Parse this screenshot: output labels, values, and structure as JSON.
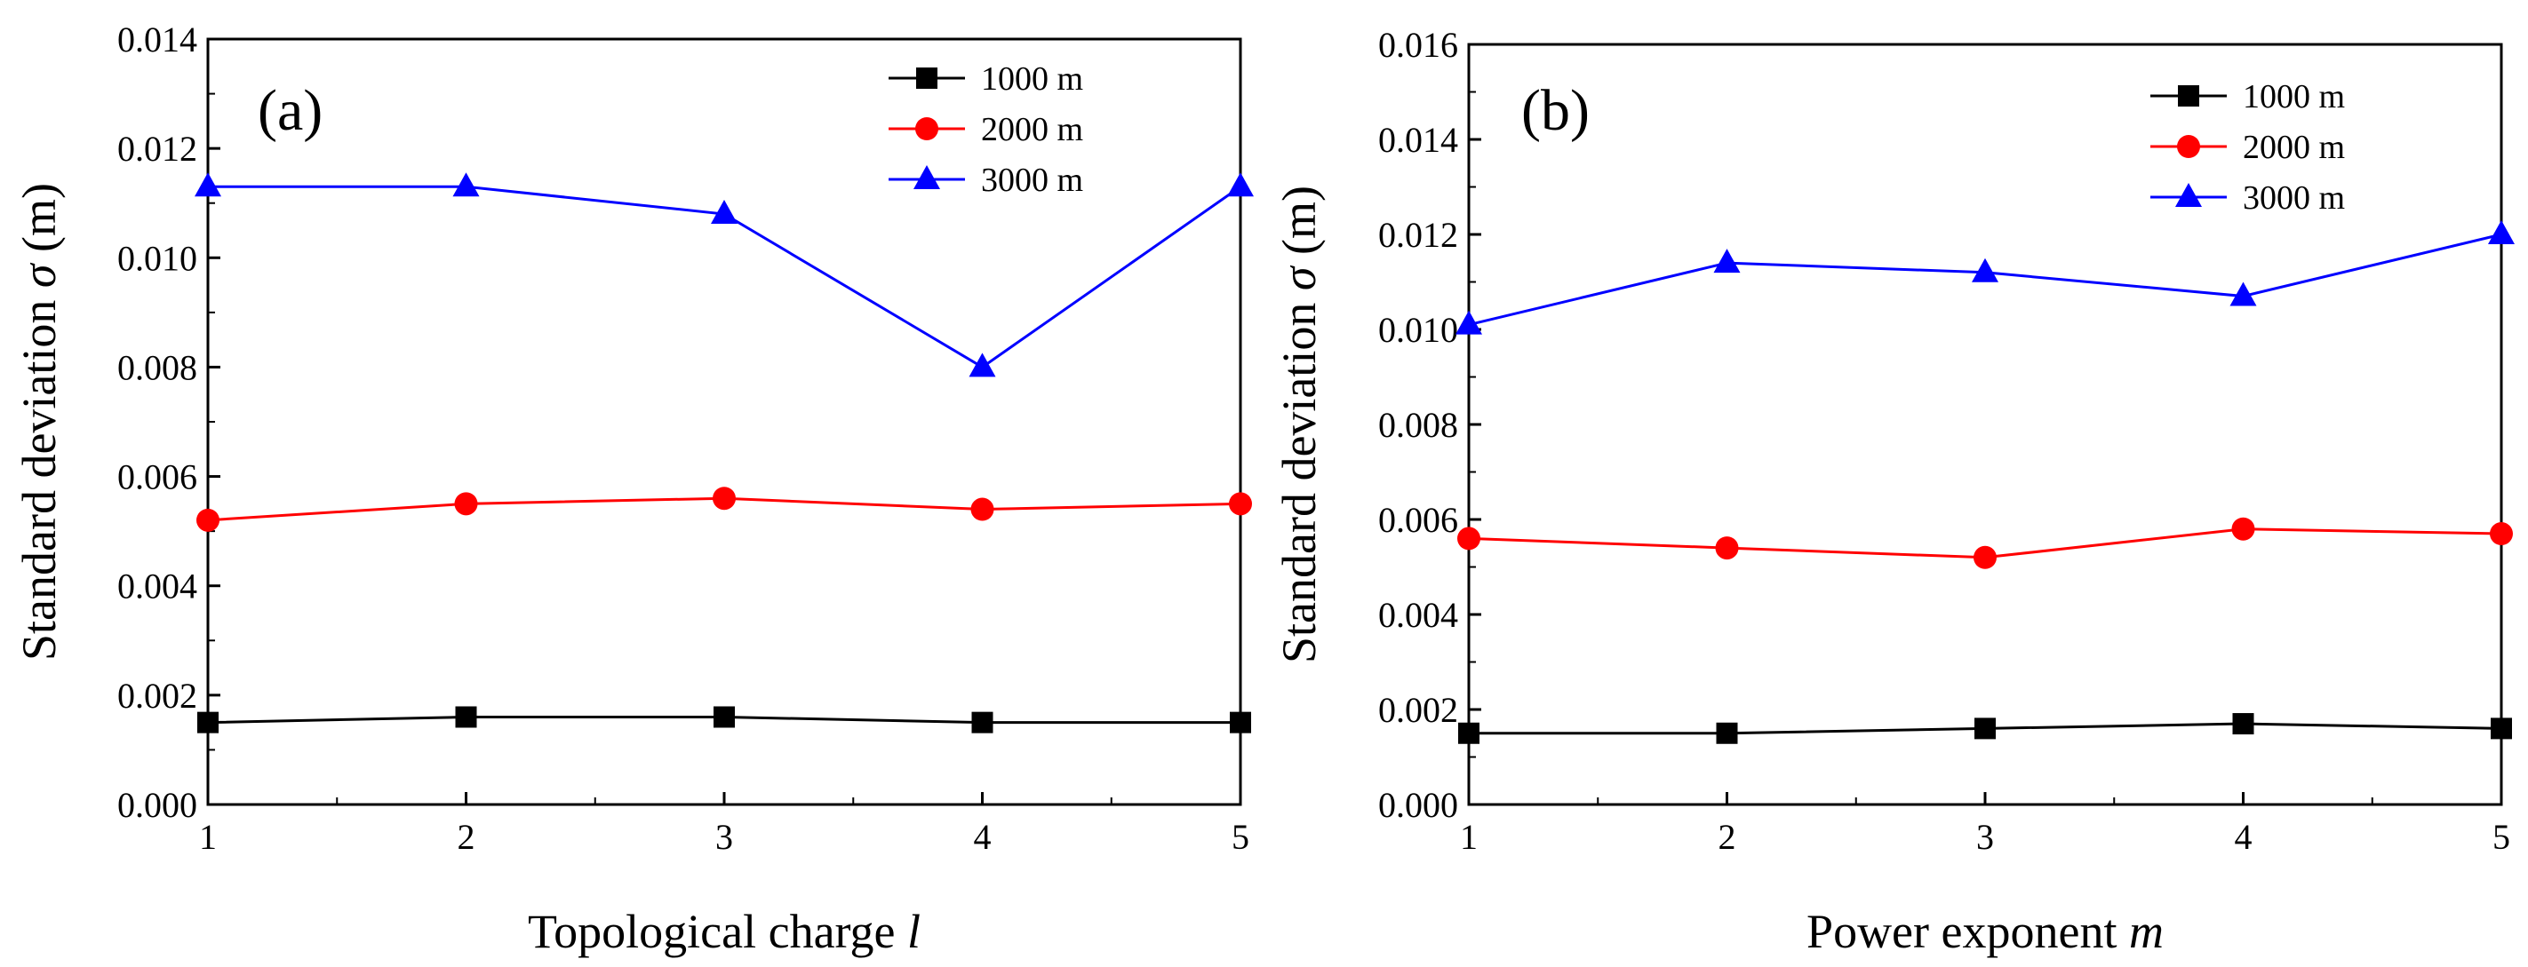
{
  "chart_data": [
    {
      "type": "line",
      "panel_label": "(a)",
      "x": [
        1,
        2,
        3,
        4,
        5
      ],
      "x_tick_labels": [
        "1",
        "2",
        "3",
        "4",
        "5"
      ],
      "y_tick_labels": [
        "0.000",
        "0.002",
        "0.004",
        "0.006",
        "0.008",
        "0.010",
        "0.012",
        "0.014"
      ],
      "xlabel_text": "Topological charge ",
      "xlabel_symbol": "l",
      "ylabel_text": "Standard deviation ",
      "ylabel_symbol": "σ",
      "ylabel_unit": " (m)",
      "xlim": [
        1,
        5
      ],
      "ylim": [
        0,
        0.014
      ],
      "legend_position": "top-right",
      "series": [
        {
          "name": "1000 m",
          "color": "#000000",
          "marker": "square",
          "values": [
            0.0015,
            0.0016,
            0.0016,
            0.0015,
            0.0015
          ]
        },
        {
          "name": "2000 m",
          "color": "#ff0000",
          "marker": "circle",
          "values": [
            0.0052,
            0.0055,
            0.0056,
            0.0054,
            0.0055
          ]
        },
        {
          "name": "3000 m",
          "color": "#0000ff",
          "marker": "triangle",
          "values": [
            0.0113,
            0.0113,
            0.0108,
            0.008,
            0.0113
          ]
        }
      ]
    },
    {
      "type": "line",
      "panel_label": "(b)",
      "x": [
        1,
        2,
        3,
        4,
        5
      ],
      "x_tick_labels": [
        "1",
        "2",
        "3",
        "4",
        "5"
      ],
      "y_tick_labels": [
        "0.000",
        "0.002",
        "0.004",
        "0.006",
        "0.008",
        "0.010",
        "0.012",
        "0.014",
        "0.016"
      ],
      "xlabel_text": "Power exponent ",
      "xlabel_symbol": "m",
      "ylabel_text": "Standard deviation ",
      "ylabel_symbol": "σ",
      "ylabel_unit": " (m)",
      "xlim": [
        1,
        5
      ],
      "ylim": [
        0,
        0.016
      ],
      "legend_position": "top-right",
      "series": [
        {
          "name": "1000 m",
          "color": "#000000",
          "marker": "square",
          "values": [
            0.0015,
            0.0015,
            0.0016,
            0.0017,
            0.0016
          ]
        },
        {
          "name": "2000 m",
          "color": "#ff0000",
          "marker": "circle",
          "values": [
            0.0056,
            0.0054,
            0.0052,
            0.0058,
            0.0057
          ]
        },
        {
          "name": "3000 m",
          "color": "#0000ff",
          "marker": "triangle",
          "values": [
            0.0101,
            0.0114,
            0.0112,
            0.0107,
            0.012
          ]
        }
      ]
    }
  ]
}
